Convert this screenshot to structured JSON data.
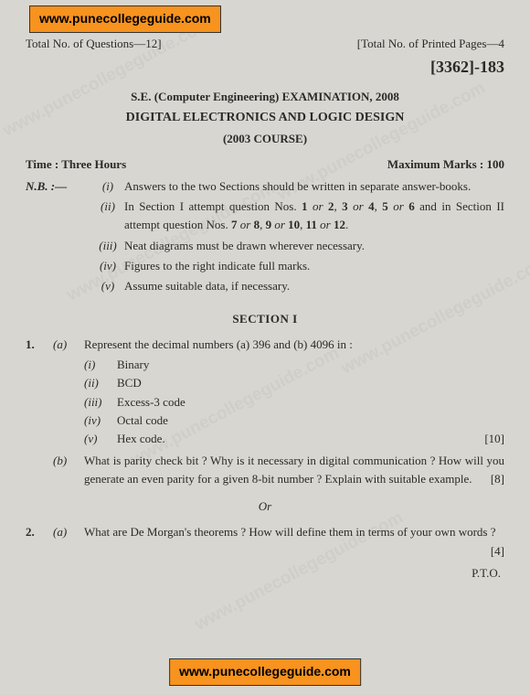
{
  "watermark_text": "www.punecollegeguide.com",
  "badge_url": "www.punecollegeguide.com",
  "header": {
    "left": "Total No. of Questions—12]",
    "right": "[Total No. of Printed Pages—4",
    "paper_code": "[3362]-183"
  },
  "title": {
    "line1": "S.E. (Computer Engineering) EXAMINATION, 2008",
    "line2": "DIGITAL ELECTRONICS AND LOGIC DESIGN",
    "line3": "(2003 COURSE)"
  },
  "meta": {
    "time": "Time : Three Hours",
    "marks": "Maximum Marks : 100"
  },
  "nb_label": "N.B. :—",
  "nb": [
    {
      "n": "(i)",
      "text": "Answers to the two Sections should be written in separate answer-books."
    },
    {
      "n": "(ii)",
      "html": "In Section I attempt question Nos. <b>1</b> <i>or</i> <b>2</b>, <b>3</b> <i>or</i> <b>4</b>, <b>5</b> <i>or</i> <b>6</b> and in Section II attempt question Nos. <b>7</b> <i>or</i> <b>8</b>, <b>9</b> <i>or</i> <b>10</b>, <b>11</b> <i>or</i> <b>12</b>."
    },
    {
      "n": "(iii)",
      "text": "Neat diagrams must be drawn wherever necessary."
    },
    {
      "n": "(iv)",
      "text": "Figures to the right indicate full marks."
    },
    {
      "n": "(v)",
      "text": "Assume suitable data, if necessary."
    }
  ],
  "section_heading": "SECTION I",
  "q1": {
    "num": "1.",
    "a_sub": "(a)",
    "a_text": "Represent the decimal numbers (a) 396 and (b) 4096 in :",
    "subs": [
      {
        "n": "(i)",
        "t": "Binary"
      },
      {
        "n": "(ii)",
        "t": "BCD"
      },
      {
        "n": "(iii)",
        "t": "Excess-3 code"
      },
      {
        "n": "(iv)",
        "t": "Octal code"
      },
      {
        "n": "(v)",
        "t": "Hex code."
      }
    ],
    "a_marks": "[10]",
    "b_sub": "(b)",
    "b_text": "What is parity check bit ? Why is it necessary in digital communication ? How will you generate an even parity for a given 8-bit number ? Explain with suitable example.",
    "b_marks": "[8]"
  },
  "or": "Or",
  "q2": {
    "num": "2.",
    "a_sub": "(a)",
    "a_text": "What are De Morgan's theorems ? How will define them in terms of your own words ?",
    "a_marks": "[4]"
  },
  "pto": "P.T.O."
}
